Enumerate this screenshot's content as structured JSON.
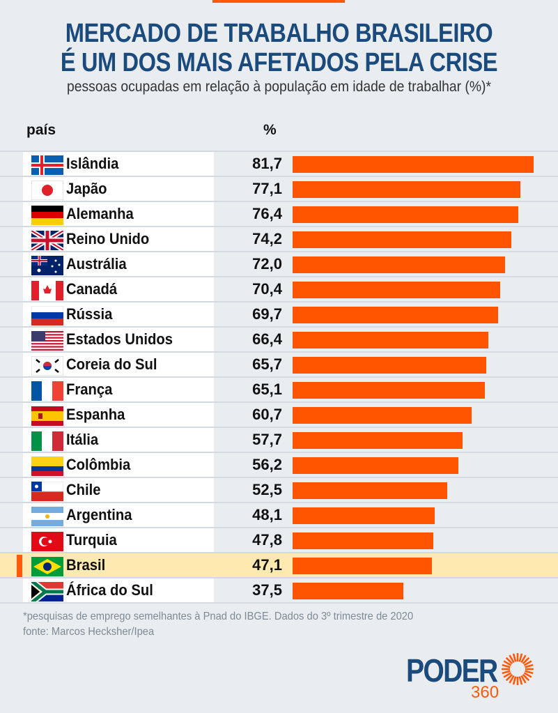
{
  "title_line1": "MERCADO DE TRABALHO BRASILEIRO",
  "title_line2": "É UM DOS MAIS AFETADOS PELA CRISE",
  "subtitle": "pessoas ocupadas em relação à população em idade de trabalhar (%)*",
  "footnote": "*pesquisas de emprego semelhantes à Pnad do IBGE. Dados do 3º trimestre de 2020",
  "source": "fonte: Marcos Hecksher/Ipea",
  "logo": {
    "text": "PODER",
    "number": "360"
  },
  "colors": {
    "bar": "#ff5500",
    "title": "#1b4a7c",
    "highlight": "#feeab0"
  },
  "chart_data": {
    "type": "bar",
    "orientation": "horizontal",
    "column_headers": [
      "país",
      "%"
    ],
    "categories": [
      "Islândia",
      "Japão",
      "Alemanha",
      "Reino Unido",
      "Austrália",
      "Canadá",
      "Rússia",
      "Estados Unidos",
      "Coreia do Sul",
      "França",
      "Espanha",
      "Itália",
      "Colômbia",
      "Chile",
      "Argentina",
      "Turquia",
      "Brasil",
      "África do Sul"
    ],
    "labels": [
      "81,7",
      "77,1",
      "76,4",
      "74,2",
      "72,0",
      "70,4",
      "69,7",
      "66,4",
      "65,7",
      "65,1",
      "60,7",
      "57,7",
      "56,2",
      "52,5",
      "48,1",
      "47,8",
      "47,1",
      "37,5"
    ],
    "values": [
      81.7,
      77.1,
      76.4,
      74.2,
      72.0,
      70.4,
      69.7,
      66.4,
      65.7,
      65.1,
      60.7,
      57.7,
      56.2,
      52.5,
      48.1,
      47.8,
      47.1,
      37.5
    ],
    "highlight": "Brasil",
    "xlim": [
      0,
      81.7
    ]
  }
}
